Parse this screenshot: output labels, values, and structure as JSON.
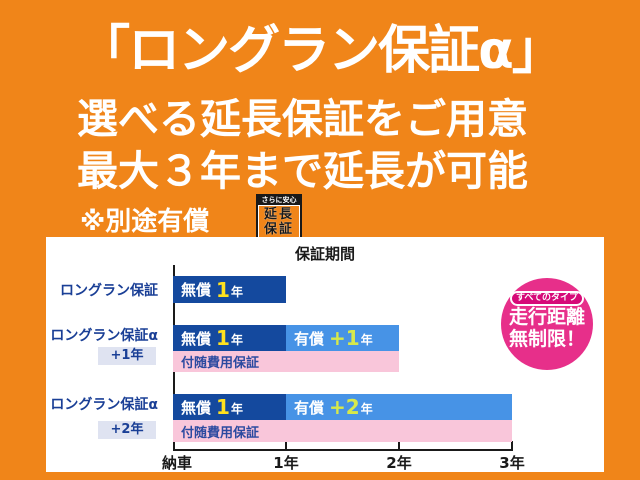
{
  "header": {
    "title": "「ロングラン保証α」",
    "line1": "選べる延長保証をご用意",
    "line2": "最大３年まで延長が可能",
    "note": "※別途有償"
  },
  "stamp": {
    "tagline": "さらに安心",
    "line1": "延長",
    "line2": "保証"
  },
  "badge": {
    "pill": "すべてのタイプ",
    "line1": "走行距離",
    "line2": "無制限！"
  },
  "chart_data": {
    "type": "bar",
    "title": "保証期間",
    "xlabel": "",
    "x_range_years": [
      0,
      3
    ],
    "axis_labels": [
      "納車",
      "1年",
      "2年",
      "3年"
    ],
    "grid": false,
    "rows": [
      {
        "label": "ロングラン保証",
        "chip": "",
        "segments": [
          {
            "kind": "free",
            "prefix": "無償",
            "num": "1",
            "suffix": "年",
            "start": 0,
            "end": 1
          }
        ],
        "incidental": null
      },
      {
        "label": "ロングラン保証α",
        "chip": "+1年",
        "segments": [
          {
            "kind": "free",
            "prefix": "無償",
            "num": "1",
            "suffix": "年",
            "start": 0,
            "end": 1
          },
          {
            "kind": "paid",
            "prefix": "有償",
            "num": "+1",
            "suffix": "年",
            "start": 1,
            "end": 2
          }
        ],
        "incidental": {
          "label": "付随費用保証",
          "start": 0,
          "end": 2
        }
      },
      {
        "label": "ロングラン保証α",
        "chip": "+2年",
        "segments": [
          {
            "kind": "free",
            "prefix": "無償",
            "num": "1",
            "suffix": "年",
            "start": 0,
            "end": 1
          },
          {
            "kind": "paid",
            "prefix": "有償",
            "num": "+2",
            "suffix": "年",
            "start": 1,
            "end": 3
          }
        ],
        "incidental": {
          "label": "付随費用保証",
          "start": 0,
          "end": 3
        }
      }
    ]
  },
  "colors": {
    "bg": "#f08519",
    "panel": "#ffffff",
    "white": "#ffffff",
    "navy": "#14499e",
    "lightblue": "#4793e6",
    "pinkbar": "#f9c6da",
    "pinktext": "#2b4aa0",
    "freenum": "#ffe11e",
    "paidnum": "#d7e94a",
    "labelblue": "#1a3f96",
    "chipbg": "#dfe3f1",
    "circlepink": "#e72f8a",
    "pillpink": "#d60a78",
    "axis": "#1a1a1a",
    "stampblack": "#191919"
  }
}
